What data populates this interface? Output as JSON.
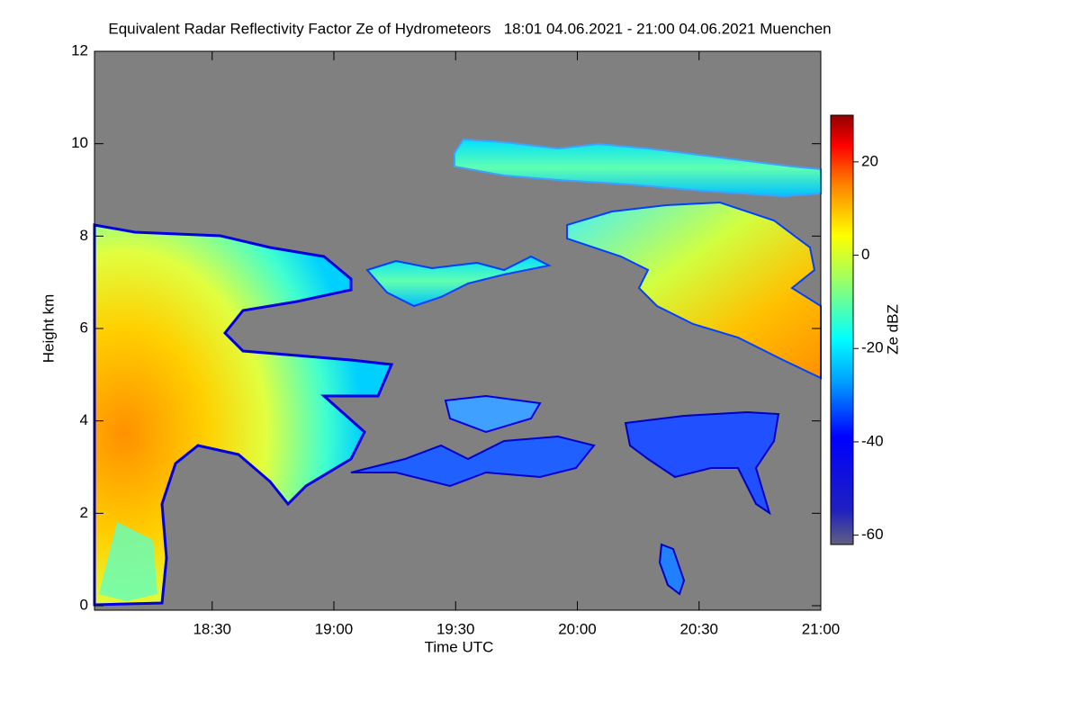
{
  "chart_data": {
    "type": "heatmap",
    "title": "Equivalent Radar Reflectivity Factor Ze of Hydrometeors   18:01 04.06.2021 - 21:00 04.06.2021 Muenchen",
    "x_label": "Time UTC",
    "y_label": "Height km",
    "colorbar_label": "Ze dBZ",
    "xlim": [
      1081,
      1260
    ],
    "xticks": [
      {
        "value": 1110,
        "label": "18:30"
      },
      {
        "value": 1140,
        "label": "19:00"
      },
      {
        "value": 1170,
        "label": "19:30"
      },
      {
        "value": 1200,
        "label": "20:00"
      },
      {
        "value": 1230,
        "label": "20:30"
      },
      {
        "value": 1260,
        "label": "21:00"
      }
    ],
    "ylim": [
      0,
      12
    ],
    "yticks": [
      0,
      2,
      4,
      6,
      8,
      10,
      12
    ],
    "clim": [
      -62,
      30
    ],
    "cticks": [
      -60,
      -40,
      -20,
      0,
      20
    ],
    "colormap": "jet",
    "background": "#808080"
  }
}
